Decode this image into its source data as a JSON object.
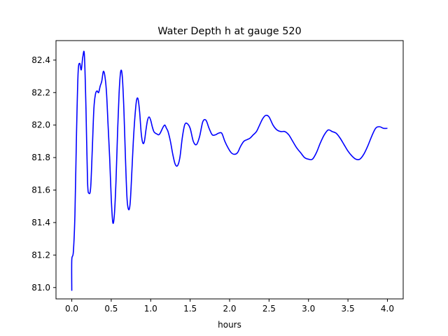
{
  "chart_data": {
    "type": "line",
    "title": "Water Depth h at gauge 520",
    "xlabel": "hours",
    "ylabel": "",
    "xlim": [
      -0.2,
      4.2
    ],
    "ylim": [
      80.93,
      82.52
    ],
    "xticks": [
      0.0,
      0.5,
      1.0,
      1.5,
      2.0,
      2.5,
      3.0,
      3.5,
      4.0
    ],
    "xtick_labels": [
      "0.0",
      "0.5",
      "1.0",
      "1.5",
      "2.0",
      "2.5",
      "3.0",
      "3.5",
      "4.0"
    ],
    "yticks": [
      81.0,
      81.2,
      81.4,
      81.6,
      81.8,
      82.0,
      82.2,
      82.4
    ],
    "ytick_labels": [
      "81.0",
      "81.2",
      "81.4",
      "81.6",
      "81.8",
      "82.0",
      "82.2",
      "82.4"
    ],
    "grid": false,
    "color": "#0000ff",
    "series": [
      {
        "x": [
          0.0,
          0.0,
          0.02,
          0.04,
          0.06,
          0.08,
          0.1,
          0.12,
          0.14,
          0.16,
          0.18,
          0.2,
          0.22,
          0.24,
          0.26,
          0.28,
          0.3,
          0.32,
          0.34,
          0.36,
          0.38,
          0.4,
          0.42,
          0.44,
          0.46,
          0.48,
          0.5,
          0.52,
          0.54,
          0.56,
          0.58,
          0.6,
          0.62,
          0.64,
          0.66,
          0.68,
          0.7,
          0.72,
          0.74,
          0.76,
          0.78,
          0.8,
          0.82,
          0.84,
          0.86,
          0.88,
          0.9,
          0.92,
          0.94,
          0.96,
          0.98,
          1.0,
          1.02,
          1.04,
          1.06,
          1.08,
          1.1,
          1.12,
          1.14,
          1.16,
          1.18,
          1.2,
          1.22,
          1.25,
          1.28,
          1.31,
          1.34,
          1.37,
          1.4,
          1.43,
          1.46,
          1.5,
          1.54,
          1.58,
          1.62,
          1.66,
          1.7,
          1.74,
          1.78,
          1.82,
          1.86,
          1.9,
          1.94,
          1.98,
          2.02,
          2.06,
          2.1,
          2.14,
          2.18,
          2.22,
          2.26,
          2.3,
          2.34,
          2.38,
          2.42,
          2.46,
          2.5,
          2.55,
          2.6,
          2.65,
          2.7,
          2.75,
          2.8,
          2.85,
          2.9,
          2.95,
          3.0,
          3.05,
          3.1,
          3.15,
          3.2,
          3.25,
          3.3,
          3.35,
          3.4,
          3.45,
          3.5,
          3.55,
          3.6,
          3.65,
          3.7,
          3.75,
          3.8,
          3.85,
          3.9,
          3.95,
          4.0
        ],
        "y": [
          80.98,
          81.17,
          81.22,
          81.45,
          81.95,
          82.32,
          82.38,
          82.34,
          82.42,
          82.43,
          82.1,
          81.65,
          81.58,
          81.62,
          81.85,
          82.1,
          82.19,
          82.21,
          82.2,
          82.24,
          82.27,
          82.33,
          82.3,
          82.2,
          82.0,
          81.8,
          81.55,
          81.4,
          81.45,
          81.65,
          81.95,
          82.2,
          82.33,
          82.3,
          82.1,
          81.8,
          81.55,
          81.48,
          81.52,
          81.7,
          81.9,
          82.05,
          82.15,
          82.16,
          82.08,
          81.95,
          81.89,
          81.9,
          81.97,
          82.03,
          82.05,
          82.03,
          81.99,
          81.96,
          81.95,
          81.945,
          81.94,
          81.95,
          81.97,
          81.99,
          82.0,
          81.98,
          81.96,
          81.9,
          81.82,
          81.76,
          81.75,
          81.8,
          81.92,
          82.0,
          82.01,
          81.98,
          81.9,
          81.88,
          81.93,
          82.02,
          82.03,
          81.98,
          81.94,
          81.94,
          81.95,
          81.95,
          81.9,
          81.86,
          81.83,
          81.82,
          81.83,
          81.87,
          81.9,
          81.91,
          81.92,
          81.94,
          81.96,
          82.0,
          82.04,
          82.06,
          82.05,
          82.0,
          81.97,
          81.96,
          81.96,
          81.94,
          81.9,
          81.86,
          81.83,
          81.8,
          81.79,
          81.79,
          81.83,
          81.89,
          81.94,
          81.97,
          81.96,
          81.95,
          81.92,
          81.88,
          81.84,
          81.81,
          81.79,
          81.79,
          81.82,
          81.87,
          81.93,
          81.98,
          81.99,
          81.98,
          81.98
        ]
      }
    ]
  }
}
